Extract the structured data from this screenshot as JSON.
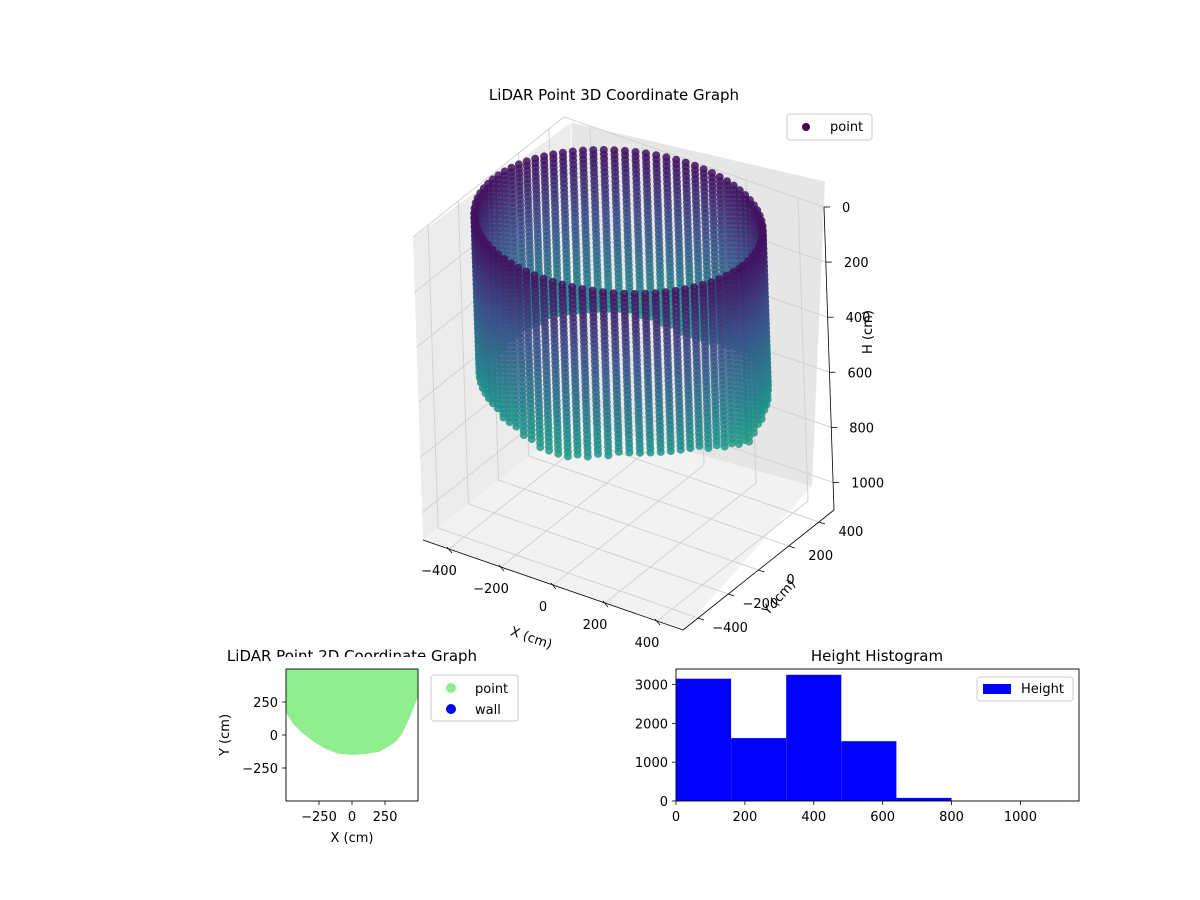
{
  "chart_data": [
    {
      "id": "scatter3d",
      "type": "scatter",
      "title": "LiDAR Point 3D Coordinate Graph",
      "xlabel": "X (cm)",
      "ylabel": "Y (cm)",
      "zlabel": "H (cm)",
      "xlim": [
        -500,
        500
      ],
      "ylim": [
        -500,
        500
      ],
      "zlim": [
        0,
        1100
      ],
      "z_inverted": true,
      "x_ticks": [
        "−400",
        "−200",
        "0",
        "200",
        "400"
      ],
      "y_ticks": [
        "−400",
        "−200",
        "0",
        "200",
        "400"
      ],
      "z_ticks": [
        "0",
        "200",
        "400",
        "600",
        "800",
        "1000"
      ],
      "grid": true,
      "colormap": "viridis",
      "legend": {
        "position": "top-right",
        "entries": [
          {
            "label": "point",
            "color": "#440154"
          }
        ]
      },
      "series": [
        {
          "name": "point",
          "shape": "partial cylindrical wall of points",
          "center_xy": [
            0,
            0
          ],
          "radius_cm": 480,
          "height_range_cm": [
            0,
            640
          ],
          "color_by": "height"
        }
      ]
    },
    {
      "id": "scatter2d",
      "type": "scatter",
      "title": "LiDAR Point 2D Coordinate Graph",
      "xlabel": "X (cm)",
      "ylabel": "Y (cm)",
      "xlim": [
        -500,
        500
      ],
      "ylim": [
        -500,
        500
      ],
      "x_ticks": [
        "−250",
        "0",
        "250"
      ],
      "y_ticks": [
        "250",
        "0",
        "−250"
      ],
      "legend": {
        "position": "outside-right",
        "entries": [
          {
            "label": "point",
            "color": "#90ee90"
          },
          {
            "label": "wall",
            "color": "#0000ff"
          }
        ]
      },
      "series": [
        {
          "name": "point",
          "color": "#90ee90",
          "outline": [
            [
              -480,
              500
            ],
            [
              -480,
              180
            ],
            [
              -430,
              100
            ],
            [
              -360,
              30
            ],
            [
              -280,
              -30
            ],
            [
              -200,
              -80
            ],
            [
              -100,
              -120
            ],
            [
              0,
              -128
            ],
            [
              100,
              -122
            ],
            [
              200,
              -105
            ],
            [
              310,
              -40
            ],
            [
              360,
              20
            ],
            [
              420,
              150
            ],
            [
              480,
              300
            ],
            [
              500,
              500
            ]
          ]
        },
        {
          "name": "wall",
          "color": "#0000ff",
          "points": []
        }
      ]
    },
    {
      "id": "histogram",
      "type": "bar",
      "title": "Height Histogram",
      "xlim": [
        0,
        1170
      ],
      "ylim": [
        0,
        3400
      ],
      "x_ticks": [
        "0",
        "200",
        "400",
        "600",
        "800",
        "1000"
      ],
      "y_ticks": [
        "0",
        "1000",
        "2000",
        "3000"
      ],
      "bin_edges": [
        0,
        160,
        320,
        480,
        640,
        800,
        960,
        1120
      ],
      "values": [
        3150,
        1620,
        3250,
        1540,
        80,
        5,
        2
      ],
      "color": "#0000ff",
      "legend": {
        "position": "top-right",
        "entries": [
          {
            "label": "Height",
            "color": "#0000ff"
          }
        ]
      }
    }
  ]
}
